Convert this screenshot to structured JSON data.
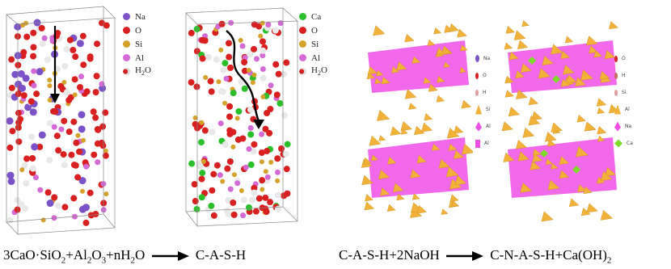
{
  "legend_left": [
    {
      "label": "Na",
      "color": "#7b52c7"
    },
    {
      "label": "O",
      "color": "#d92020"
    },
    {
      "label": "Si",
      "color": "#d4a12a"
    },
    {
      "label": "Al",
      "color": "#d36ad6"
    },
    {
      "label": "H2O",
      "color": "#d92020"
    }
  ],
  "legend_mid": [
    {
      "label": "Ca",
      "color": "#2bbf2b"
    },
    {
      "label": "O",
      "color": "#d92020"
    },
    {
      "label": "Si",
      "color": "#d4a12a"
    },
    {
      "label": "Al",
      "color": "#d36ad6"
    },
    {
      "label": "H2O",
      "color": "#d92020"
    }
  ],
  "legend_right_a": [
    "Na",
    "O",
    "H",
    "Si",
    "Al",
    "Al"
  ],
  "legend_right_b": [
    "O",
    "H",
    "Si",
    "Al",
    "Na",
    "Ca"
  ],
  "equation_left": {
    "part1": "3CaO·SiO",
    "sub1": "2",
    "part2": "+Al",
    "sub2": "2",
    "part3": "O",
    "sub3": "3",
    "part4": "+nH",
    "sub4": "2",
    "part5": "O",
    "product": "C-A-S-H"
  },
  "equation_right": {
    "reactants": "C-A-S-H+2NaOH",
    "product1": "C-N-A-S-H+Ca(OH)",
    "sub": "2"
  }
}
